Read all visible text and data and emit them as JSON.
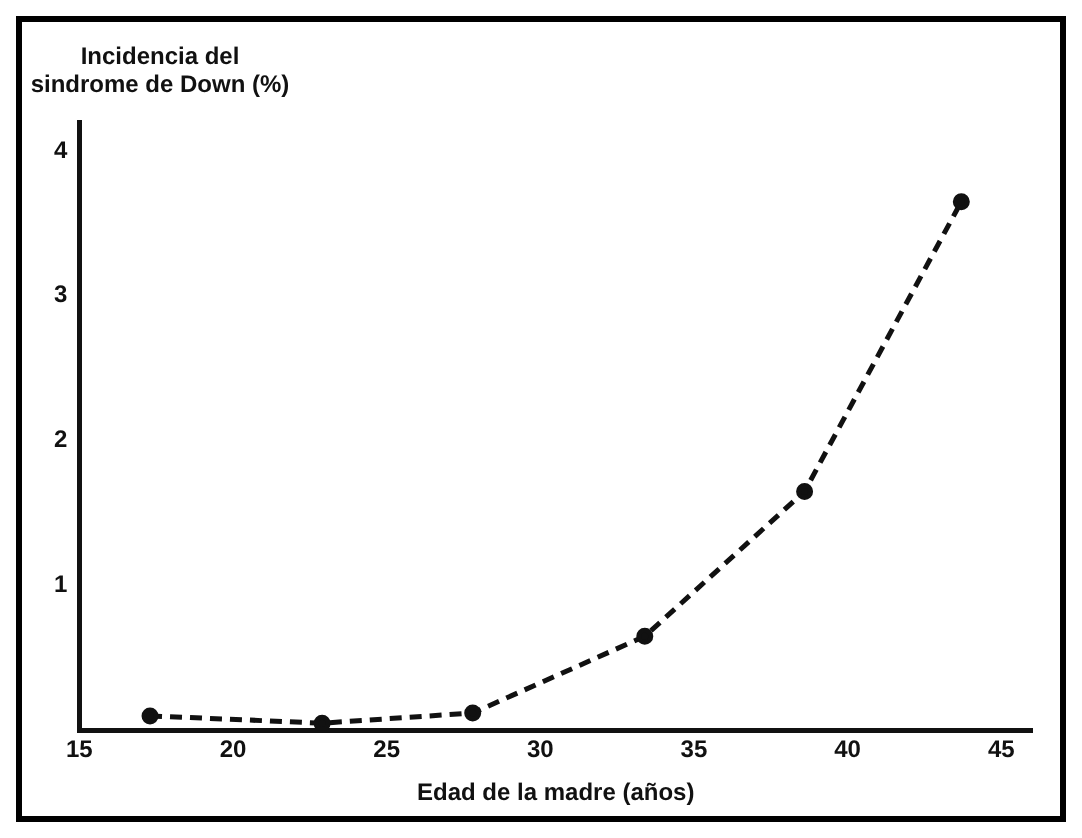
{
  "chart_data": {
    "type": "line",
    "xlabel": "Edad de la madre (años)",
    "ylabel": "Incidencia del sindrome de Down (%)",
    "x": [
      17.3,
      22.9,
      27.8,
      33.4,
      38.6,
      43.7
    ],
    "series": [
      {
        "color": "#111111",
        "values": [
          0.1,
          0.05,
          0.12,
          0.65,
          1.65,
          3.65
        ]
      }
    ],
    "xlim": [
      15,
      46
    ],
    "xticks": [
      15,
      20,
      25,
      30,
      35,
      40,
      45
    ],
    "ylim": [
      0,
      4.2
    ],
    "yticks": [
      1,
      2,
      3,
      4
    ],
    "grid": false,
    "legend": false,
    "marker": "circle",
    "line_style": "dashed"
  }
}
